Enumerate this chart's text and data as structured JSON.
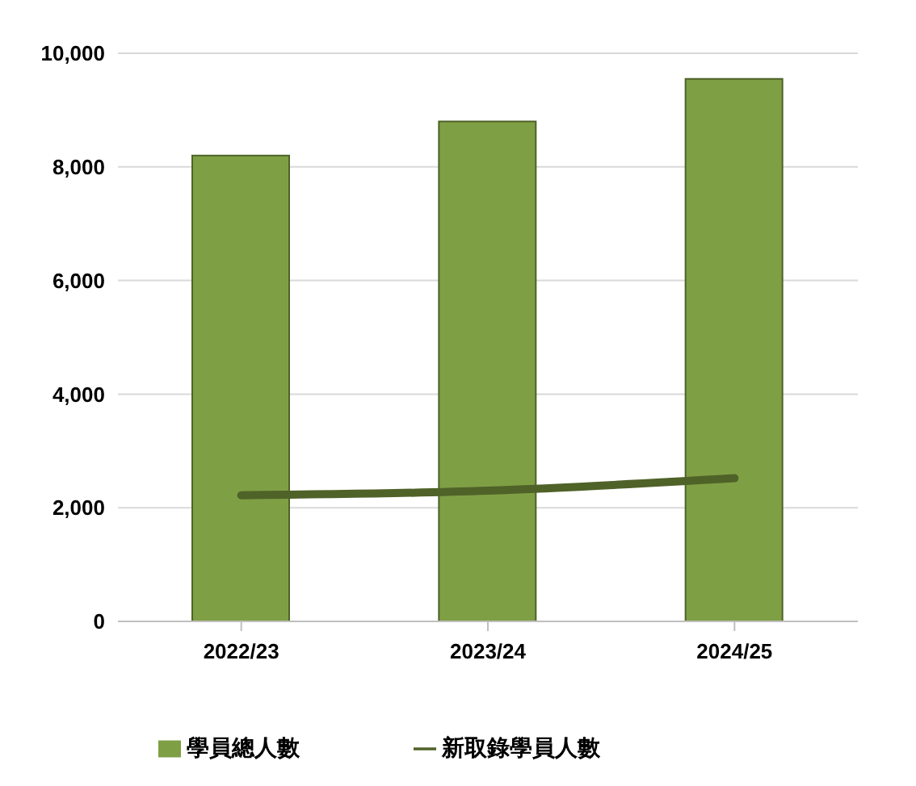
{
  "chart_data": {
    "type": "bar",
    "categories": [
      "2022/23",
      "2023/24",
      "2024/25"
    ],
    "series": [
      {
        "name": "學員總人數",
        "color": "#7f9f45",
        "values": [
          8200,
          8800,
          9550
        ]
      },
      {
        "name": "新取錄學員人數",
        "type": "line",
        "color": "#4f6228",
        "values": [
          2220,
          2300,
          2520
        ]
      }
    ],
    "ylim": [
      0,
      10000
    ],
    "yticks": [
      {
        "value": 0,
        "label": "0"
      },
      {
        "value": 2000,
        "label": "2,000"
      },
      {
        "value": 4000,
        "label": "4,000"
      },
      {
        "value": 6000,
        "label": "6,000"
      },
      {
        "value": 8000,
        "label": "8,000"
      },
      {
        "value": 10000,
        "label": "10,000"
      }
    ],
    "grid": "y",
    "legend": "bottom",
    "marker": "none"
  }
}
